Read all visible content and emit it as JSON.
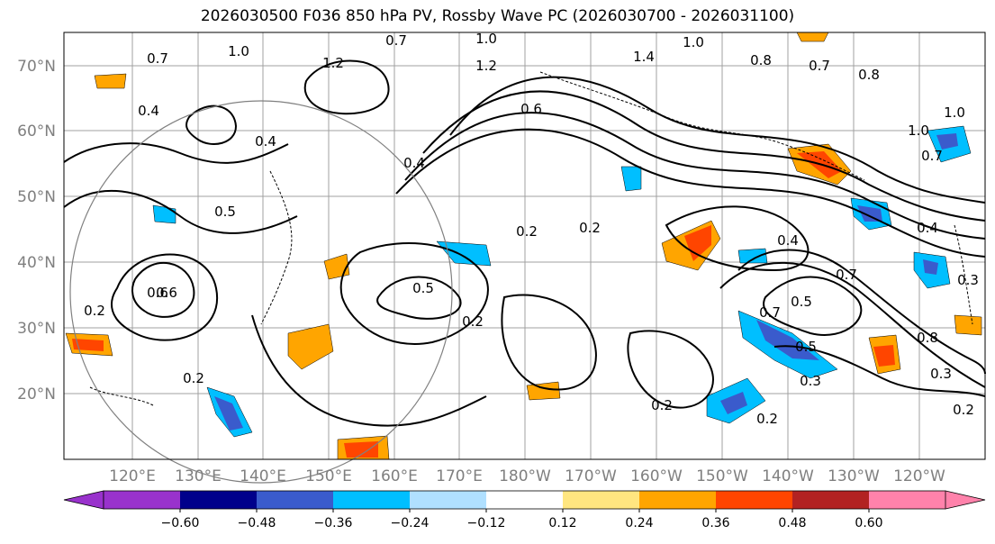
{
  "title": "2026030500 F036 850 hPa PV, Rossby Wave PC (2026030700 - 2026031100)",
  "lat_labels": [
    "70°N",
    "60°N",
    "50°N",
    "40°N",
    "30°N",
    "20°N"
  ],
  "lon_labels": [
    "120°E",
    "130°E",
    "140°E",
    "150°E",
    "160°E",
    "170°E",
    "180°W",
    "170°W",
    "160°W",
    "150°W",
    "140°W",
    "130°W",
    "120°W"
  ],
  "colorbar": {
    "ticks": [
      "−0.60",
      "−0.48",
      "−0.36",
      "−0.24",
      "−0.12",
      "0.12",
      "0.24",
      "0.36",
      "0.48",
      "0.60"
    ],
    "colors": [
      "#9932cc",
      "#00008b",
      "#3a5bcc",
      "#00bfff",
      "#b0e0ff",
      "#ffffff",
      "#ffe680",
      "#ffa500",
      "#ff4500",
      "#b22222",
      "#ff82ab"
    ]
  },
  "contour_labels": [
    "1.0",
    "0.7",
    "1.0",
    "1.2",
    "1.0",
    "1.2",
    "1.0",
    "0.8",
    "1.4",
    "0.7",
    "0.8",
    "0.4",
    "0.4",
    "0.6",
    "0.4",
    "0.2",
    "0.2",
    "0.4",
    "0.5",
    "0.6",
    "0.2",
    "0.2",
    "0.5",
    "0.2",
    "0.2",
    "0.2",
    "0.7",
    "0.5",
    "0.7",
    "0.5",
    "0.3",
    "0.2",
    "0.3",
    "0.8",
    "1.0",
    "0.7",
    "0.4",
    "0.3",
    "0.6",
    "0.7"
  ]
}
